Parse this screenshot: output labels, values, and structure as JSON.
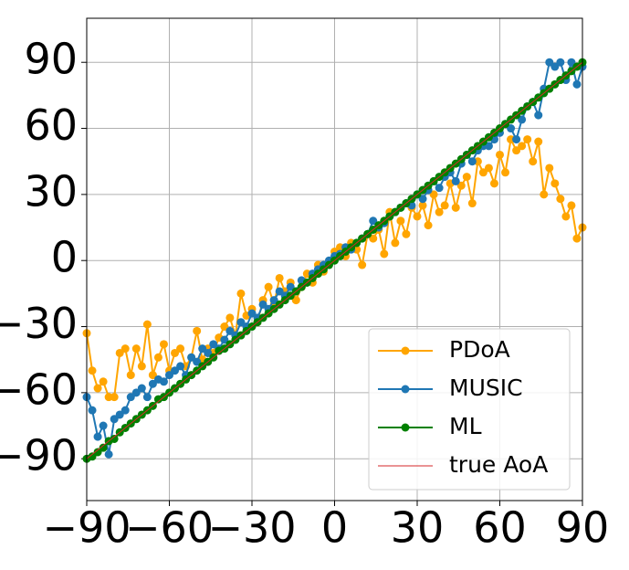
{
  "chart_data": {
    "type": "line",
    "x": [
      -90,
      -88,
      -86,
      -84,
      -82,
      -80,
      -78,
      -76,
      -74,
      -72,
      -70,
      -68,
      -66,
      -64,
      -62,
      -60,
      -58,
      -56,
      -54,
      -52,
      -50,
      -48,
      -46,
      -44,
      -42,
      -40,
      -38,
      -36,
      -34,
      -32,
      -30,
      -28,
      -26,
      -24,
      -22,
      -20,
      -18,
      -16,
      -14,
      -12,
      -10,
      -8,
      -6,
      -4,
      -2,
      0,
      2,
      4,
      6,
      8,
      10,
      12,
      14,
      16,
      18,
      20,
      22,
      24,
      26,
      28,
      30,
      32,
      34,
      36,
      38,
      40,
      42,
      44,
      46,
      48,
      50,
      52,
      54,
      56,
      58,
      60,
      62,
      64,
      66,
      68,
      70,
      72,
      74,
      76,
      78,
      80,
      82,
      84,
      86,
      88,
      90
    ],
    "series": [
      {
        "name": "PDoA",
        "color": "#ffa500",
        "marker": true,
        "values": [
          -33,
          -50,
          -58,
          -55,
          -62,
          -62,
          -42,
          -40,
          -52,
          -40,
          -48,
          -29,
          -52,
          -44,
          -38,
          -50,
          -42,
          -40,
          -48,
          -44,
          -32,
          -45,
          -40,
          -42,
          -35,
          -30,
          -26,
          -34,
          -15,
          -25,
          -22,
          -28,
          -18,
          -12,
          -20,
          -8,
          -14,
          -10,
          -18,
          -12,
          -6,
          -10,
          -2,
          -5,
          -1,
          4,
          6,
          2,
          8,
          5,
          -2,
          12,
          10,
          14,
          3,
          22,
          8,
          18,
          12,
          24,
          20,
          25,
          16,
          30,
          22,
          25,
          35,
          24,
          34,
          38,
          26,
          45,
          40,
          42,
          35,
          48,
          40,
          55,
          50,
          52,
          55,
          45,
          54,
          30,
          42,
          35,
          28,
          20,
          25,
          10,
          15
        ]
      },
      {
        "name": "MUSIC",
        "color": "#1f77b4",
        "marker": true,
        "values": [
          -62,
          -68,
          -80,
          -75,
          -88,
          -72,
          -70,
          -68,
          -62,
          -60,
          -58,
          -62,
          -56,
          -54,
          -55,
          -52,
          -50,
          -48,
          -52,
          -44,
          -46,
          -40,
          -42,
          -38,
          -40,
          -36,
          -32,
          -34,
          -28,
          -30,
          -24,
          -26,
          -20,
          -22,
          -18,
          -14,
          -16,
          -12,
          -14,
          -9,
          -10,
          -6,
          -4,
          -2,
          0,
          2,
          3,
          6,
          5,
          8,
          10,
          12,
          18,
          15,
          17,
          20,
          22,
          24,
          26,
          25,
          30,
          28,
          32,
          36,
          33,
          38,
          40,
          36,
          44,
          48,
          45,
          50,
          52,
          52,
          55,
          58,
          62,
          60,
          55,
          64,
          70,
          72,
          66,
          78,
          90,
          88,
          90,
          82,
          90,
          80,
          88
        ]
      },
      {
        "name": "ML",
        "color": "#008000",
        "marker": true,
        "values": [
          -90,
          -89,
          -87,
          -85,
          -82,
          -81,
          -78,
          -76,
          -74,
          -72,
          -70,
          -68,
          -66,
          -63,
          -62,
          -60,
          -58,
          -56,
          -54,
          -52,
          -50,
          -48,
          -46,
          -44,
          -41,
          -40,
          -38,
          -36,
          -34,
          -32,
          -30,
          -28,
          -26,
          -24,
          -22,
          -20,
          -18,
          -16,
          -14,
          -12,
          -10,
          -8,
          -6,
          -4,
          -2,
          0,
          2,
          4,
          6,
          8,
          10,
          12,
          14,
          16,
          18,
          20,
          22,
          24,
          26,
          28,
          30,
          32,
          34,
          36,
          38,
          40,
          42,
          44,
          46,
          48,
          50,
          52,
          54,
          56,
          58,
          60,
          62,
          64,
          66,
          68,
          70,
          72,
          74,
          76,
          78,
          80,
          82,
          84,
          86,
          88,
          90
        ]
      },
      {
        "name": "true AoA",
        "color": "#d62728",
        "marker": false,
        "values": [
          -90,
          -88,
          -86,
          -84,
          -82,
          -80,
          -78,
          -76,
          -74,
          -72,
          -70,
          -68,
          -66,
          -64,
          -62,
          -60,
          -58,
          -56,
          -54,
          -52,
          -50,
          -48,
          -46,
          -44,
          -42,
          -40,
          -38,
          -36,
          -34,
          -32,
          -30,
          -28,
          -26,
          -24,
          -22,
          -20,
          -18,
          -16,
          -14,
          -12,
          -10,
          -8,
          -6,
          -4,
          -2,
          0,
          2,
          4,
          6,
          8,
          10,
          12,
          14,
          16,
          18,
          20,
          22,
          24,
          26,
          28,
          30,
          32,
          34,
          36,
          38,
          40,
          42,
          44,
          46,
          48,
          50,
          52,
          54,
          56,
          58,
          60,
          62,
          64,
          66,
          68,
          70,
          72,
          74,
          76,
          78,
          80,
          82,
          84,
          86,
          88,
          90
        ]
      }
    ],
    "xlim": [
      -90,
      90
    ],
    "xticks": [
      {
        "value": -90,
        "label": "−90"
      },
      {
        "value": -60,
        "label": "−60"
      },
      {
        "value": -30,
        "label": "−30"
      },
      0,
      30,
      60,
      90
    ],
    "ylim": [
      -109,
      110
    ],
    "yticks": [
      {
        "value": -90,
        "label": "−90"
      },
      {
        "value": -60,
        "label": "−60"
      },
      {
        "value": -30,
        "label": "−30"
      },
      0,
      30,
      60,
      90
    ],
    "grid": true,
    "legend": "lower right"
  }
}
